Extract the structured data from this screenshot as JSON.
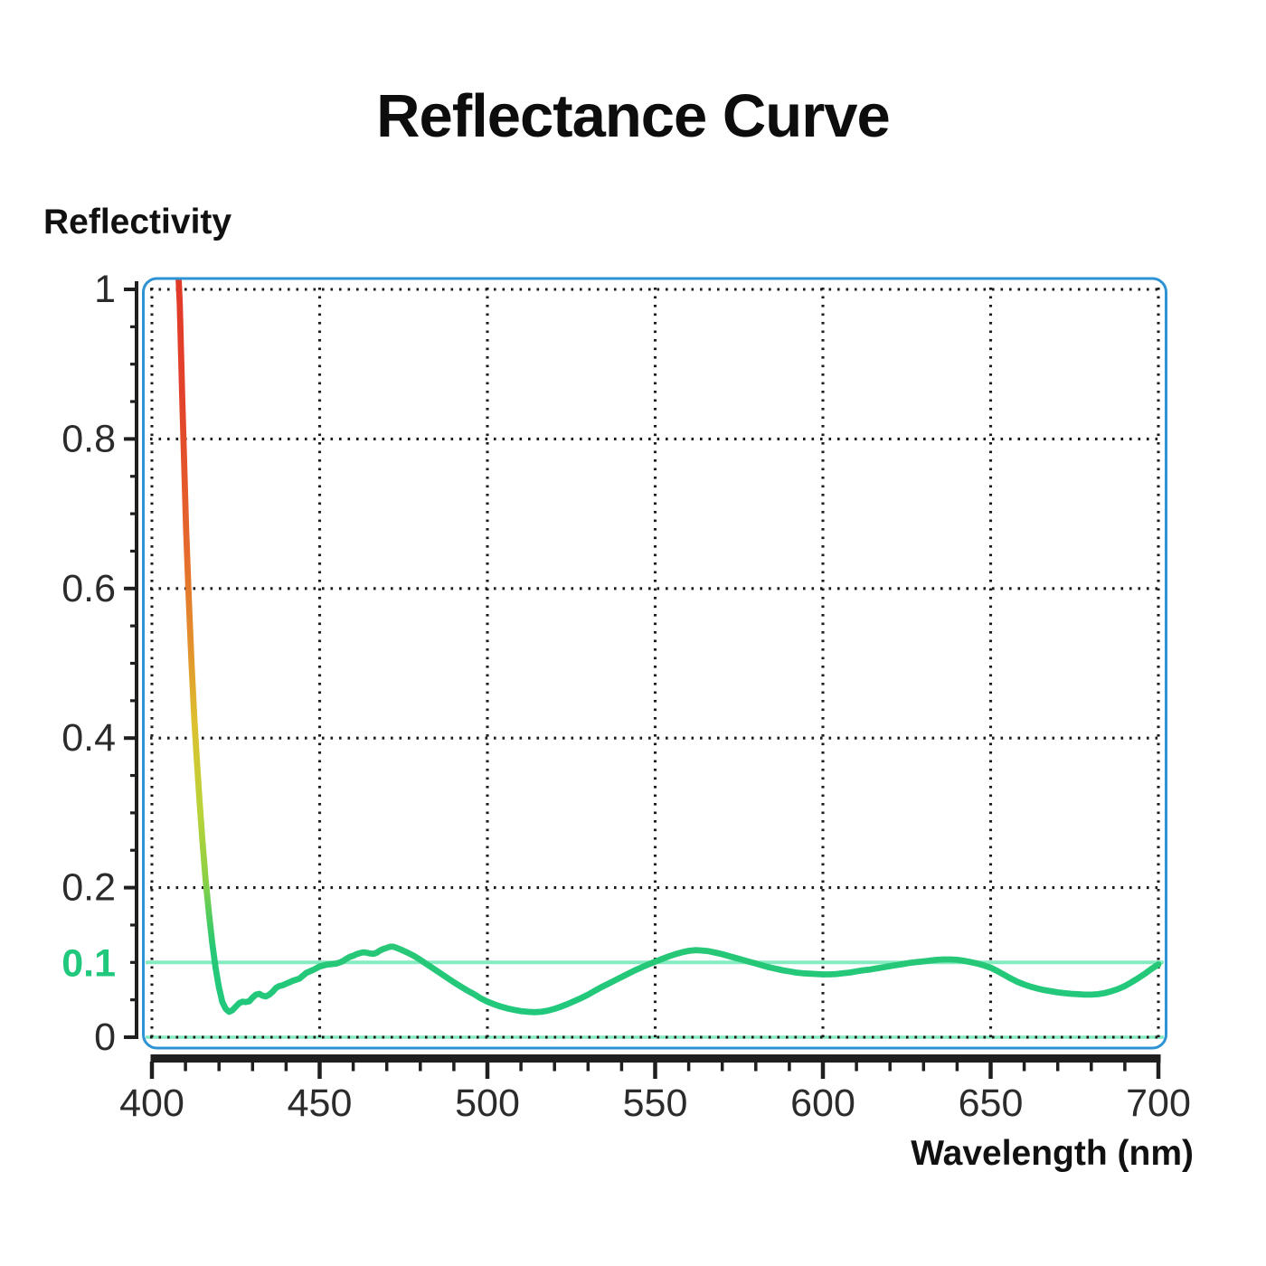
{
  "title": {
    "text": "Reflectance Curve"
  },
  "axis_titles": {
    "y": "Reflectivity",
    "x": "Wavelength (nm)"
  },
  "colors": {
    "background": "#ffffff",
    "frame": "#2e93d4",
    "grid_dots": "#1c1c1c",
    "axis": "#1f1f1f",
    "tick_label": "#2b2b2b",
    "reference_line": "#85ecc1",
    "reference_label": "#1fc87c",
    "curve_green": "#1fc87d"
  },
  "chart_data": {
    "type": "line",
    "title": "Reflectance Curve",
    "xlabel": "Wavelength (nm)",
    "ylabel": "Reflectivity",
    "xlim": [
      400,
      700
    ],
    "ylim": [
      0,
      1
    ],
    "grid": "dotted",
    "legend": "none",
    "x_ticks_major": [
      400,
      450,
      500,
      550,
      600,
      650,
      700
    ],
    "x_tick_minor_step": 10,
    "y_ticks": [
      {
        "value": 1,
        "label": "1"
      },
      {
        "value": 0.8,
        "label": "0.8"
      },
      {
        "value": 0.6,
        "label": "0.6"
      },
      {
        "value": 0.4,
        "label": "0.4"
      },
      {
        "value": 0.2,
        "label": "0.2"
      },
      {
        "value": 0,
        "label": "0"
      }
    ],
    "y_tick_minor_step": 0.05,
    "reference_line": {
      "value": 0.1,
      "label": "0.1"
    },
    "baseline_highlight": {
      "value": 0
    },
    "series": [
      {
        "name": "reflectance",
        "gradient_by_value": {
          "top_value": 1.14,
          "stops": [
            {
              "at": 1.14,
              "color": "#e03227"
            },
            {
              "at": 0.85,
              "color": "#e2432b"
            },
            {
              "at": 0.65,
              "color": "#e56a2c"
            },
            {
              "at": 0.52,
              "color": "#e2922d"
            },
            {
              "at": 0.42,
              "color": "#ddc02f"
            },
            {
              "at": 0.3,
              "color": "#b8d338"
            },
            {
              "at": 0.21,
              "color": "#8bd046"
            },
            {
              "at": 0.15,
              "color": "#44cb64"
            },
            {
              "at": 0.12,
              "color": "#27c877"
            },
            {
              "at": 0.0,
              "color": "#1fc87d"
            }
          ]
        },
        "points": [
          [
            406.8,
            1.14
          ],
          [
            407.6,
            1.05
          ],
          [
            408.3,
            0.98
          ],
          [
            409,
            0.86
          ],
          [
            409.6,
            0.77
          ],
          [
            410.2,
            0.68
          ],
          [
            411,
            0.585
          ],
          [
            411.8,
            0.5
          ],
          [
            412.6,
            0.43
          ],
          [
            413.4,
            0.37
          ],
          [
            414.2,
            0.315
          ],
          [
            415,
            0.265
          ],
          [
            416,
            0.21
          ],
          [
            417,
            0.165
          ],
          [
            418,
            0.125
          ],
          [
            419,
            0.092
          ],
          [
            420,
            0.066
          ],
          [
            421,
            0.047
          ],
          [
            422,
            0.038
          ],
          [
            423,
            0.034
          ],
          [
            424,
            0.036
          ],
          [
            425,
            0.041
          ],
          [
            426,
            0.0455
          ],
          [
            427,
            0.0475
          ],
          [
            428,
            0.047
          ],
          [
            429,
            0.048
          ],
          [
            430,
            0.053
          ],
          [
            431,
            0.057
          ],
          [
            432,
            0.058
          ],
          [
            433,
            0.0555
          ],
          [
            434,
            0.0545
          ],
          [
            435,
            0.057
          ],
          [
            436,
            0.061
          ],
          [
            437,
            0.066
          ],
          [
            438,
            0.0685
          ],
          [
            439,
            0.0695
          ],
          [
            440,
            0.0715
          ],
          [
            442,
            0.0755
          ],
          [
            444,
            0.0785
          ],
          [
            446,
            0.086
          ],
          [
            448,
            0.09
          ],
          [
            450,
            0.0945
          ],
          [
            452,
            0.097
          ],
          [
            454,
            0.098
          ],
          [
            455,
            0.0985
          ],
          [
            456,
            0.1
          ],
          [
            457,
            0.102
          ],
          [
            458,
            0.105
          ],
          [
            459,
            0.1075
          ],
          [
            460,
            0.109
          ],
          [
            461,
            0.111
          ],
          [
            462,
            0.1125
          ],
          [
            463,
            0.1135
          ],
          [
            464,
            0.113
          ],
          [
            465,
            0.112
          ],
          [
            466,
            0.1115
          ],
          [
            467,
            0.113
          ],
          [
            468,
            0.116
          ],
          [
            469,
            0.118
          ],
          [
            470,
            0.1195
          ],
          [
            471,
            0.121
          ],
          [
            472,
            0.121
          ],
          [
            473,
            0.1195
          ],
          [
            474,
            0.1175
          ],
          [
            476,
            0.1135
          ],
          [
            478,
            0.109
          ],
          [
            480,
            0.1035
          ],
          [
            482,
            0.0975
          ],
          [
            484,
            0.0915
          ],
          [
            486,
            0.0855
          ],
          [
            488,
            0.0795
          ],
          [
            490,
            0.0735
          ],
          [
            492,
            0.068
          ],
          [
            494,
            0.0625
          ],
          [
            496,
            0.0575
          ],
          [
            498,
            0.052
          ],
          [
            500,
            0.0475
          ],
          [
            502,
            0.044
          ],
          [
            504,
            0.041
          ],
          [
            506,
            0.0385
          ],
          [
            508,
            0.0365
          ],
          [
            510,
            0.035
          ],
          [
            512,
            0.034
          ],
          [
            514,
            0.0335
          ],
          [
            516,
            0.034
          ],
          [
            518,
            0.0355
          ],
          [
            520,
            0.038
          ],
          [
            522,
            0.041
          ],
          [
            524,
            0.0445
          ],
          [
            526,
            0.0485
          ],
          [
            528,
            0.0525
          ],
          [
            530,
            0.057
          ],
          [
            532,
            0.062
          ],
          [
            534,
            0.067
          ],
          [
            536,
            0.0715
          ],
          [
            538,
            0.076
          ],
          [
            540,
            0.0805
          ],
          [
            542,
            0.085
          ],
          [
            544,
            0.0895
          ],
          [
            546,
            0.0935
          ],
          [
            548,
            0.0975
          ],
          [
            550,
            0.101
          ],
          [
            552,
            0.1045
          ],
          [
            554,
            0.108
          ],
          [
            556,
            0.111
          ],
          [
            558,
            0.1135
          ],
          [
            560,
            0.1155
          ],
          [
            562,
            0.1165
          ],
          [
            564,
            0.116
          ],
          [
            566,
            0.115
          ],
          [
            568,
            0.113
          ],
          [
            570,
            0.111
          ],
          [
            572,
            0.1085
          ],
          [
            574,
            0.106
          ],
          [
            576,
            0.1035
          ],
          [
            578,
            0.101
          ],
          [
            580,
            0.0985
          ],
          [
            582,
            0.096
          ],
          [
            584,
            0.0935
          ],
          [
            586,
            0.0915
          ],
          [
            588,
            0.0895
          ],
          [
            590,
            0.088
          ],
          [
            592,
            0.0865
          ],
          [
            594,
            0.0855
          ],
          [
            596,
            0.085
          ],
          [
            598,
            0.0845
          ],
          [
            600,
            0.084
          ],
          [
            602,
            0.084
          ],
          [
            604,
            0.0845
          ],
          [
            606,
            0.0855
          ],
          [
            608,
            0.0865
          ],
          [
            610,
            0.088
          ],
          [
            612,
            0.0895
          ],
          [
            614,
            0.0905
          ],
          [
            616,
            0.092
          ],
          [
            618,
            0.0935
          ],
          [
            620,
            0.095
          ],
          [
            622,
            0.0965
          ],
          [
            624,
            0.098
          ],
          [
            626,
            0.0995
          ],
          [
            628,
            0.1005
          ],
          [
            630,
            0.1015
          ],
          [
            632,
            0.1025
          ],
          [
            634,
            0.1035
          ],
          [
            636,
            0.104
          ],
          [
            638,
            0.104
          ],
          [
            640,
            0.1035
          ],
          [
            642,
            0.1022
          ],
          [
            644,
            0.1005
          ],
          [
            646,
            0.0985
          ],
          [
            648,
            0.096
          ],
          [
            650,
            0.093
          ],
          [
            652,
            0.0885
          ],
          [
            654,
            0.0835
          ],
          [
            656,
            0.0785
          ],
          [
            658,
            0.074
          ],
          [
            660,
            0.0705
          ],
          [
            662,
            0.0675
          ],
          [
            664,
            0.065
          ],
          [
            666,
            0.063
          ],
          [
            668,
            0.0615
          ],
          [
            670,
            0.06
          ],
          [
            672,
            0.059
          ],
          [
            674,
            0.058
          ],
          [
            676,
            0.0575
          ],
          [
            678,
            0.057
          ],
          [
            680,
            0.057
          ],
          [
            682,
            0.0575
          ],
          [
            684,
            0.059
          ],
          [
            686,
            0.0615
          ],
          [
            688,
            0.0645
          ],
          [
            690,
            0.0685
          ],
          [
            692,
            0.0735
          ],
          [
            694,
            0.079
          ],
          [
            696,
            0.085
          ],
          [
            698,
            0.0915
          ],
          [
            700,
            0.0975
          ]
        ]
      }
    ]
  }
}
